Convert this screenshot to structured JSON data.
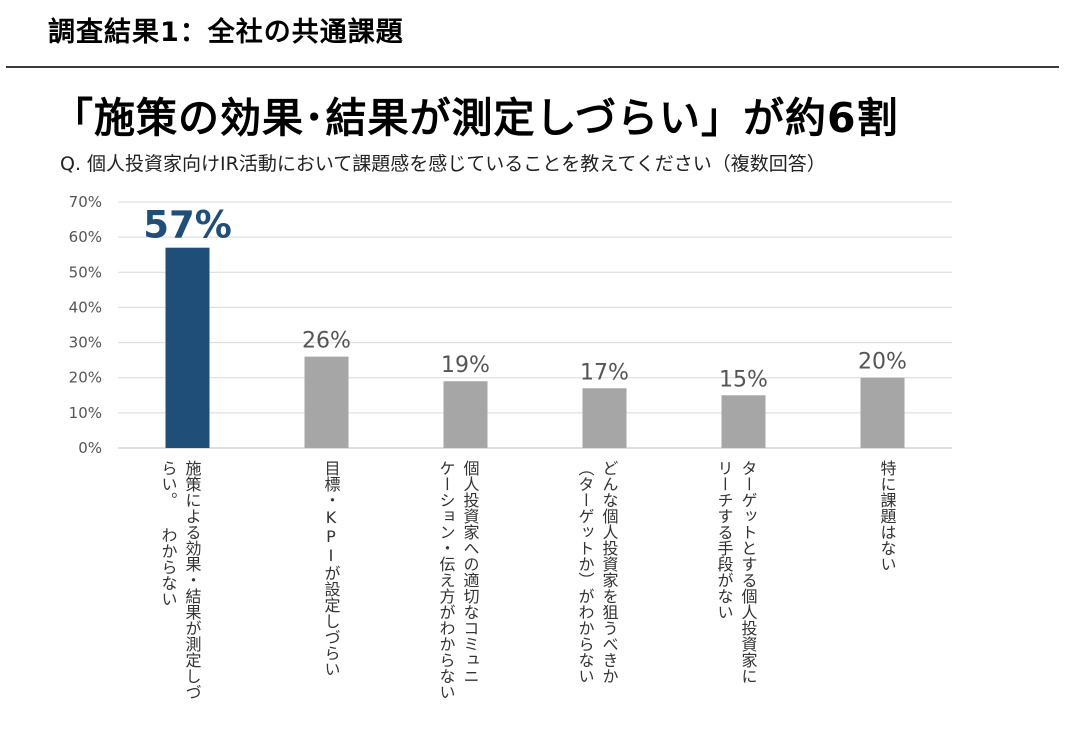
{
  "header": {
    "section_title": "調査結果1：全社の共通課題",
    "headline": "「施策の効果･結果が測定しづらい」が約6割",
    "question": "Q. 個人投資家向けIR活動において課題感を感じていることを教えてください（複数回答）"
  },
  "colors": {
    "highlight": "#1f4e79",
    "bar": "#a6a6a6",
    "grid": "#d9d9d9",
    "axis": "#bfbfbf"
  },
  "chart_data": {
    "type": "bar",
    "title": "",
    "xlabel": "",
    "ylabel": "",
    "ylim": [
      0,
      70
    ],
    "yticks": [
      0,
      10,
      20,
      30,
      40,
      50,
      60,
      70
    ],
    "ytick_labels": [
      "0%",
      "10%",
      "20%",
      "30%",
      "40%",
      "50%",
      "60%",
      "70%"
    ],
    "grid": true,
    "highlight_index": 0,
    "categories": [
      "施策による効果・結果が測定しづ\nらい。 わからない",
      "目標・KPIが設定しづらい",
      "個人投資家への適切なコミュニ\nケーション・伝え方がわからない",
      "どんな個人投資家を狙うべきか\n（ターゲットか）がわからない",
      "ターゲットとする個人投資家に\nリーチする手段がない",
      "特に課題はない"
    ],
    "values": [
      57,
      26,
      19,
      17,
      15,
      20
    ],
    "data_labels": [
      "57%",
      "26%",
      "19%",
      "17%",
      "15%",
      "20%"
    ]
  }
}
